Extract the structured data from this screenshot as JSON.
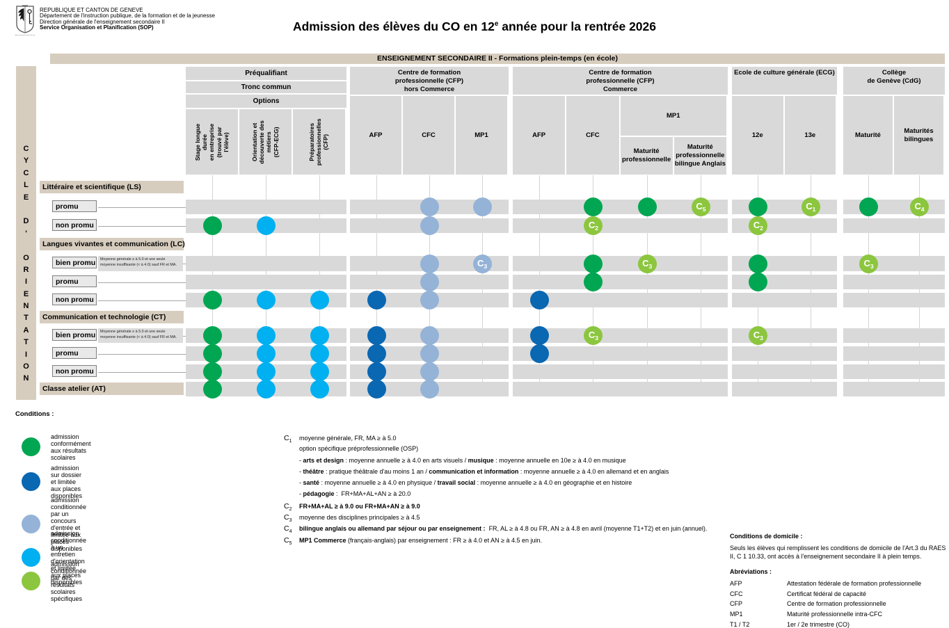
{
  "logo": {
    "lines": [
      "REPUBLIQUE ET CANTON DE GENEVE",
      "Département de l'instruction publique, de la formation et de la jeunesse",
      "Direction générale de l'enseignement secondaire II",
      "Service Organisation et Planification (SOP)"
    ]
  },
  "title": {
    "pre": "Admission des élèves du CO en 12",
    "sup": "e",
    "post": " année pour la rentrée 2026"
  },
  "banner": "ENSEIGNEMENT SECONDAIRE II - Formations plein-temps (en école)",
  "sidebar": {
    "letters": "CYCLE D' ORIENTATION"
  },
  "colors": {
    "green": "#00a651",
    "darkblue": "#0a67b2",
    "periwinkle": "#95b3d7",
    "cyan": "#00b0f0",
    "lightgreen": "#8cc63f"
  },
  "grid": {
    "groups": [
      {
        "name": "prequalifiant",
        "stacked_headers": [
          "Préqualifiant",
          "Tronc commun",
          "Options"
        ],
        "columns": [
          {
            "id": "stage",
            "label": "Stage longue durée\nen entreprise\n(trouvé par l'élève)",
            "vertical": true
          },
          {
            "id": "odm",
            "label": "Orientation et\ndécouverte des\nmétiers\n(CFP-ECG)",
            "vertical": true
          },
          {
            "id": "prepa",
            "label": "Préparatoires\nprofessionnelles\n(CFP)",
            "vertical": true
          }
        ]
      },
      {
        "name": "cfp_hors_commerce",
        "title": "Centre de formation\nprofessionnelle (CFP)\nhors Commerce",
        "columns": [
          {
            "id": "afp_hc",
            "label": "AFP"
          },
          {
            "id": "cfc_hc",
            "label": "CFC"
          },
          {
            "id": "mp1_hc",
            "label": "MP1"
          }
        ]
      },
      {
        "name": "cfp_commerce",
        "title": "Centre de formation\nprofessionnelle (CFP)\nCommerce",
        "mp1_label": "MP1",
        "columns": [
          {
            "id": "afp_co",
            "label": "AFP"
          },
          {
            "id": "cfc_co",
            "label": "CFC"
          },
          {
            "id": "mp_co",
            "label": "Maturité\nprofessionnelle",
            "parent": "MP1"
          },
          {
            "id": "mpb_co",
            "label": "Maturité\nprofessionnelle\nbilingue Anglais",
            "parent": "MP1"
          }
        ]
      },
      {
        "name": "ecg",
        "title": "Ecole de culture générale (ECG)",
        "columns": [
          {
            "id": "ecg_12e",
            "label": "12e"
          },
          {
            "id": "ecg_13e",
            "label": "13e"
          }
        ]
      },
      {
        "name": "cdg",
        "title": "Collège\nde Genève (CdG)",
        "columns": [
          {
            "id": "cdg_mat",
            "label": "Maturité"
          },
          {
            "id": "cdg_matbi",
            "label": "Maturités\nbilingues"
          }
        ]
      }
    ],
    "rows": [
      {
        "type": "section",
        "label": "Littéraire et scientifique (LS)"
      },
      {
        "type": "promotion",
        "label": "promu",
        "dots": [
          {
            "col": "cfc_hc",
            "color": "periwinkle"
          },
          {
            "col": "mp1_hc",
            "color": "periwinkle"
          },
          {
            "col": "cfc_co",
            "color": "green"
          },
          {
            "col": "mp_co",
            "color": "green"
          },
          {
            "col": "mpb_co",
            "color": "lightgreen",
            "badge": "C5"
          },
          {
            "col": "ecg_12e",
            "color": "green"
          },
          {
            "col": "ecg_13e",
            "color": "lightgreen",
            "badge": "C1"
          },
          {
            "col": "cdg_mat",
            "color": "green"
          },
          {
            "col": "cdg_matbi",
            "color": "lightgreen",
            "badge": "C4"
          }
        ]
      },
      {
        "type": "promotion",
        "label": "non promu",
        "dots": [
          {
            "col": "stage",
            "color": "green"
          },
          {
            "col": "odm",
            "color": "cyan"
          },
          {
            "col": "cfc_hc",
            "color": "periwinkle"
          },
          {
            "col": "cfc_co",
            "color": "lightgreen",
            "badge": "C2"
          },
          {
            "col": "ecg_12e",
            "color": "lightgreen",
            "badge": "C2"
          }
        ]
      },
      {
        "type": "section",
        "label": "Langues vivantes et communication (LC)"
      },
      {
        "type": "promotion",
        "label": "bien promu",
        "note": "Moyenne générale ≥ à 5.0 et une seule moyenne insuffisante (< à 4.0) sauf FR et MA.",
        "dots": [
          {
            "col": "cfc_hc",
            "color": "periwinkle"
          },
          {
            "col": "mp1_hc",
            "color": "periwinkle",
            "badge": "C3"
          },
          {
            "col": "cfc_co",
            "color": "green"
          },
          {
            "col": "mp_co",
            "color": "lightgreen",
            "badge": "C3"
          },
          {
            "col": "ecg_12e",
            "color": "green"
          },
          {
            "col": "cdg_mat",
            "color": "lightgreen",
            "badge": "C3"
          }
        ]
      },
      {
        "type": "promotion",
        "label": "promu",
        "dots": [
          {
            "col": "cfc_hc",
            "color": "periwinkle"
          },
          {
            "col": "cfc_co",
            "color": "green"
          },
          {
            "col": "ecg_12e",
            "color": "green"
          }
        ]
      },
      {
        "type": "promotion",
        "label": "non promu",
        "dots": [
          {
            "col": "stage",
            "color": "green"
          },
          {
            "col": "odm",
            "color": "cyan"
          },
          {
            "col": "prepa",
            "color": "cyan"
          },
          {
            "col": "afp_hc",
            "color": "darkblue"
          },
          {
            "col": "cfc_hc",
            "color": "periwinkle"
          },
          {
            "col": "afp_co",
            "color": "darkblue"
          }
        ]
      },
      {
        "type": "section",
        "label": "Communication et technologie (CT)"
      },
      {
        "type": "promotion",
        "label": "bien promu",
        "note": "Moyenne générale ≥ à 5.0 et une seule moyenne insuffisante (< à 4.0) sauf FR et MA.",
        "dots": [
          {
            "col": "stage",
            "color": "green"
          },
          {
            "col": "odm",
            "color": "cyan"
          },
          {
            "col": "prepa",
            "color": "cyan"
          },
          {
            "col": "afp_hc",
            "color": "darkblue"
          },
          {
            "col": "cfc_hc",
            "color": "periwinkle"
          },
          {
            "col": "afp_co",
            "color": "darkblue"
          },
          {
            "col": "cfc_co",
            "color": "lightgreen",
            "badge": "C3"
          },
          {
            "col": "ecg_12e",
            "color": "lightgreen",
            "badge": "C3"
          }
        ]
      },
      {
        "type": "promotion",
        "label": "promu",
        "dots": [
          {
            "col": "stage",
            "color": "green"
          },
          {
            "col": "odm",
            "color": "cyan"
          },
          {
            "col": "prepa",
            "color": "cyan"
          },
          {
            "col": "afp_hc",
            "color": "darkblue"
          },
          {
            "col": "cfc_hc",
            "color": "periwinkle"
          },
          {
            "col": "afp_co",
            "color": "darkblue"
          }
        ]
      },
      {
        "type": "promotion",
        "label": "non promu",
        "dots": [
          {
            "col": "stage",
            "color": "green"
          },
          {
            "col": "odm",
            "color": "cyan"
          },
          {
            "col": "prepa",
            "color": "cyan"
          },
          {
            "col": "afp_hc",
            "color": "darkblue"
          },
          {
            "col": "cfc_hc",
            "color": "periwinkle"
          }
        ]
      },
      {
        "type": "section_row",
        "label": "Classe atelier (AT)",
        "dots": [
          {
            "col": "stage",
            "color": "green"
          },
          {
            "col": "odm",
            "color": "cyan"
          },
          {
            "col": "prepa",
            "color": "cyan"
          },
          {
            "col": "afp_hc",
            "color": "darkblue"
          },
          {
            "col": "cfc_hc",
            "color": "periwinkle"
          }
        ]
      }
    ]
  },
  "legend": {
    "title": "Conditions :",
    "items": [
      {
        "color": "green",
        "text": "admission conformément aux résultats scolaires"
      },
      {
        "color": "darkblue",
        "text": "admission sur dossier et limitée aux places disponibles"
      },
      {
        "color": "periwinkle",
        "text": "admission conditionnée par un concours d'entrée et limitée aux places disponibles"
      },
      {
        "color": "cyan",
        "text": "admission conditionnée à un entretien d'orientation et limitée aux places disponibles"
      },
      {
        "color": "lightgreen",
        "text": "admission conditionnée par des résultats scolaires spécifiques"
      }
    ]
  },
  "c_conditions": [
    {
      "badge": "C1",
      "segs": [
        [
          "moyenne générale, FR, MA ≥ à 5.0",
          0
        ]
      ]
    },
    {
      "badge": "",
      "segs": [
        [
          "option spécifique préprofessionnelle (OSP)",
          0
        ]
      ]
    },
    {
      "badge": "",
      "segs": [
        [
          "- ",
          0
        ],
        [
          "arts et design",
          1
        ],
        [
          " : moyenne annuelle ≥ à 4.0 en arts visuels / ",
          0
        ],
        [
          "musique",
          1
        ],
        [
          " : moyenne annuelle en 10e ≥ à 4.0 en musique",
          0
        ]
      ]
    },
    {
      "badge": "",
      "segs": [
        [
          "- ",
          0
        ],
        [
          "théâtre",
          1
        ],
        [
          " : pratique théâtrale d'au moins 1 an / ",
          0
        ],
        [
          "communication et information",
          1
        ],
        [
          " : moyenne annuelle ≥ à 4.0 en allemand et en anglais",
          0
        ]
      ]
    },
    {
      "badge": "",
      "segs": [
        [
          "- ",
          0
        ],
        [
          "santé",
          1
        ],
        [
          " : moyenne annuelle ≥ à 4.0 en physique / ",
          0
        ],
        [
          "travail social",
          1
        ],
        [
          " : moyenne annuelle ≥ à 4.0 en géographie et en histoire",
          0
        ]
      ]
    },
    {
      "badge": "",
      "segs": [
        [
          "- ",
          0
        ],
        [
          "pédagogie",
          1
        ],
        [
          " :  FR+MA+AL+AN ≥ à 20.0",
          0
        ]
      ]
    },
    {
      "badge": "C2",
      "segs": [
        [
          "FR+MA+AL ≥ à 9.0 ou FR+MA+AN ≥ à 9.0",
          1
        ]
      ]
    },
    {
      "badge": "C3",
      "segs": [
        [
          "moyenne des disciplines principales ≥ à 4.5",
          0
        ]
      ]
    },
    {
      "badge": "C4",
      "segs": [
        [
          "bilingue anglais ou allemand par séjour ou par enseignement :",
          1
        ],
        [
          "  FR, AL ≥ à 4.8 ou FR, AN ≥ à 4.8 en avril (moyenne T1+T2) et en juin (annuel).",
          0
        ]
      ]
    },
    {
      "badge": "C5",
      "segs": [
        [
          "MP1 Commerce",
          1
        ],
        [
          " (français-anglais) par enseignement : FR ≥ à 4.0 et AN ≥ à 4.5 en juin.",
          0
        ]
      ]
    }
  ],
  "domicile": {
    "title": "Conditions de domicile :",
    "text": "Seuls les élèves qui remplissent les conditions de domicile de l'Art.3 du RAES II, C 1 10.33, ont accès à l'enseignement secondaire II à plein temps."
  },
  "abbreviations": {
    "title": "Abréviations :",
    "rows": [
      [
        "AFP",
        "Attestation fédérale de formation professionnelle"
      ],
      [
        "CFC",
        "Certificat fédéral de capacité"
      ],
      [
        "CFP",
        "Centre de formation professionnelle"
      ],
      [
        "MP1",
        "Maturité professionnelle intra-CFC"
      ],
      [
        "T1 / T2",
        "1er / 2e trimestre (CO)"
      ]
    ]
  }
}
